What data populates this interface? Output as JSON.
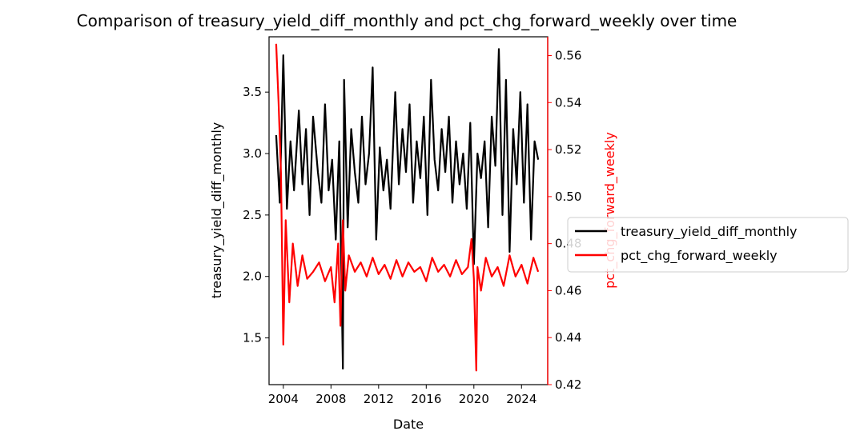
{
  "chart_data": {
    "type": "line",
    "title": "Comparison of treasury_yield_diff_monthly and pct_chg_forward_weekly over time",
    "xlabel": "Date",
    "ylabel_left": "treasury_yield_diff_monthly",
    "ylabel_right": "pct_chg_forward_weekly",
    "xlim": [
      2002.8,
      2026.2
    ],
    "ylim_left": [
      1.12,
      3.95
    ],
    "ylim_right": [
      0.42,
      0.568
    ],
    "x_ticks": [
      2004,
      2008,
      2012,
      2016,
      2020,
      2024
    ],
    "x_tick_labels": [
      "2004",
      "2008",
      "2012",
      "2016",
      "2020",
      "2024"
    ],
    "y_left_ticks": [
      1.5,
      2.0,
      2.5,
      3.0,
      3.5
    ],
    "y_left_tick_labels": [
      "1.5",
      "2.0",
      "2.5",
      "3.0",
      "3.5"
    ],
    "y_right_ticks": [
      0.42,
      0.44,
      0.46,
      0.48,
      0.5,
      0.52,
      0.54,
      0.56
    ],
    "y_right_tick_labels": [
      "0.42",
      "0.44",
      "0.46",
      "0.48",
      "0.50",
      "0.52",
      "0.54",
      "0.56"
    ],
    "legend_position": "center-right-outside",
    "grid": false,
    "series": [
      {
        "name": "treasury_yield_diff_monthly",
        "axis": "left",
        "color": "#000000",
        "x": [
          2003.4,
          2003.7,
          2004.0,
          2004.3,
          2004.6,
          2004.9,
          2005.3,
          2005.6,
          2005.9,
          2006.2,
          2006.5,
          2006.9,
          2007.2,
          2007.5,
          2007.8,
          2008.1,
          2008.4,
          2008.7,
          2009.0,
          2009.1,
          2009.4,
          2009.7,
          2010.0,
          2010.3,
          2010.6,
          2010.9,
          2011.2,
          2011.5,
          2011.8,
          2012.1,
          2012.4,
          2012.7,
          2013.0,
          2013.4,
          2013.7,
          2014.0,
          2014.3,
          2014.6,
          2014.9,
          2015.2,
          2015.5,
          2015.8,
          2016.1,
          2016.4,
          2016.7,
          2017.0,
          2017.3,
          2017.6,
          2017.9,
          2018.2,
          2018.5,
          2018.8,
          2019.1,
          2019.4,
          2019.7,
          2020.0,
          2020.3,
          2020.6,
          2020.9,
          2021.2,
          2021.5,
          2021.8,
          2022.1,
          2022.4,
          2022.7,
          2023.0,
          2023.3,
          2023.6,
          2023.9,
          2024.2,
          2024.5,
          2024.8,
          2025.1,
          2025.4
        ],
        "values": [
          3.15,
          2.6,
          3.8,
          2.55,
          3.1,
          2.7,
          3.35,
          2.75,
          3.2,
          2.5,
          3.3,
          2.85,
          2.6,
          3.4,
          2.7,
          2.95,
          2.3,
          3.1,
          1.25,
          3.6,
          2.4,
          3.2,
          2.85,
          2.6,
          3.3,
          2.75,
          3.0,
          3.7,
          2.3,
          3.05,
          2.7,
          2.95,
          2.55,
          3.5,
          2.75,
          3.2,
          2.85,
          3.4,
          2.6,
          3.1,
          2.8,
          3.3,
          2.5,
          3.6,
          2.95,
          2.7,
          3.2,
          2.85,
          3.3,
          2.6,
          3.1,
          2.75,
          3.0,
          2.55,
          3.25,
          2.1,
          3.0,
          2.8,
          3.1,
          2.4,
          3.3,
          2.9,
          3.85,
          2.5,
          3.6,
          2.2,
          3.2,
          2.75,
          3.5,
          2.6,
          3.4,
          2.3,
          3.1,
          2.95
        ]
      },
      {
        "name": "pct_chg_forward_weekly",
        "axis": "right",
        "color": "#ff0000",
        "x": [
          2003.4,
          2003.6,
          2003.8,
          2004.0,
          2004.2,
          2004.5,
          2004.8,
          2005.2,
          2005.6,
          2006.0,
          2006.5,
          2007.0,
          2007.5,
          2008.0,
          2008.3,
          2008.6,
          2008.8,
          2009.0,
          2009.2,
          2009.5,
          2010.0,
          2010.5,
          2011.0,
          2011.5,
          2012.0,
          2012.5,
          2013.0,
          2013.5,
          2014.0,
          2014.5,
          2015.0,
          2015.5,
          2016.0,
          2016.5,
          2017.0,
          2017.5,
          2018.0,
          2018.5,
          2019.0,
          2019.5,
          2019.8,
          2020.0,
          2020.2,
          2020.3,
          2020.6,
          2021.0,
          2021.5,
          2022.0,
          2022.5,
          2023.0,
          2023.5,
          2024.0,
          2024.5,
          2025.0,
          2025.4
        ],
        "values": [
          0.565,
          0.54,
          0.51,
          0.437,
          0.49,
          0.455,
          0.48,
          0.462,
          0.475,
          0.465,
          0.468,
          0.472,
          0.464,
          0.47,
          0.455,
          0.48,
          0.445,
          0.49,
          0.46,
          0.475,
          0.468,
          0.472,
          0.466,
          0.474,
          0.467,
          0.471,
          0.465,
          0.473,
          0.466,
          0.472,
          0.468,
          0.47,
          0.464,
          0.474,
          0.468,
          0.471,
          0.466,
          0.473,
          0.467,
          0.47,
          0.482,
          0.465,
          0.426,
          0.47,
          0.46,
          0.474,
          0.466,
          0.47,
          0.462,
          0.475,
          0.466,
          0.471,
          0.463,
          0.474,
          0.468
        ]
      }
    ]
  }
}
